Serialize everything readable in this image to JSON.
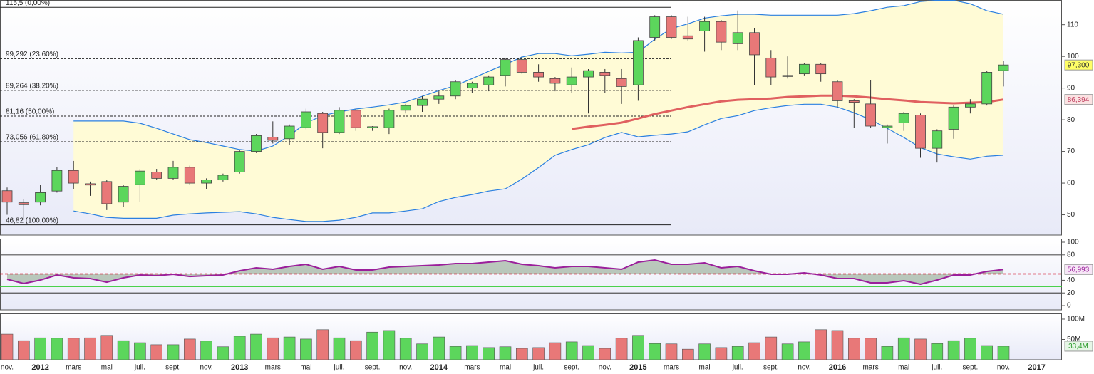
{
  "chart_data": [
    {
      "type": "candlestick",
      "open": [
        57.6,
        53.8,
        54,
        57.5,
        64,
        59.8,
        60.5,
        54,
        59.5,
        63.5,
        61.5,
        65,
        60,
        61,
        63.5,
        70,
        74.5,
        74,
        77.5,
        82,
        76,
        83,
        77.5,
        77.5,
        83,
        84.5,
        86.5,
        87.5,
        90,
        91,
        94,
        99,
        95,
        93,
        91,
        93.5,
        95,
        93,
        91,
        106,
        112.5,
        106.5,
        108,
        111,
        104,
        107.5,
        99.5,
        94,
        94.5,
        97.5,
        92,
        86,
        85,
        77.5,
        79,
        81.5,
        71,
        77,
        84,
        85,
        95.5,
        null,
        null
      ],
      "high": [
        58.6,
        55,
        59.5,
        65,
        67,
        60.5,
        61,
        59.5,
        64.5,
        64.5,
        67,
        65.5,
        61.5,
        63,
        70.5,
        75.5,
        79.5,
        78.5,
        83.5,
        82.5,
        84,
        83.5,
        78,
        83.5,
        85,
        87.5,
        89,
        92.5,
        92,
        94,
        99.5,
        100,
        97.5,
        93.5,
        96.5,
        96,
        96,
        96,
        106,
        113,
        113,
        112.5,
        112.5,
        111.5,
        114.5,
        109,
        102,
        100,
        98,
        98,
        92.5,
        86.5,
        92.5,
        78.5,
        82.5,
        82,
        77,
        84.5,
        86.5,
        95.5,
        98.5,
        null,
        null
      ],
      "low": [
        50,
        49,
        53,
        57,
        58,
        56,
        51.5,
        52.5,
        54,
        61,
        61,
        59.5,
        58,
        60.5,
        63,
        69.5,
        72.5,
        72,
        77,
        71,
        75.5,
        76.5,
        76.5,
        75.5,
        82,
        82.5,
        85,
        86.5,
        88.5,
        89,
        90.5,
        94.5,
        92,
        89,
        88.5,
        82,
        88.5,
        85,
        86,
        105,
        105.5,
        105,
        101.5,
        102,
        102,
        91,
        91,
        93,
        94,
        92,
        84,
        77.5,
        77.5,
        72.5,
        76.5,
        68,
        66.5,
        74,
        82,
        84.5,
        90.5,
        null,
        null
      ],
      "close": [
        54,
        53.2,
        57,
        64,
        60,
        59.4,
        53.5,
        59,
        63.8,
        61.5,
        65,
        60,
        61,
        62.5,
        70,
        75,
        73.5,
        78,
        82.5,
        76,
        83,
        77.5,
        77.8,
        83,
        84.5,
        86.5,
        87.5,
        92,
        91.5,
        93.5,
        99,
        95,
        93.5,
        91.5,
        93.5,
        95.5,
        94,
        90.5,
        105,
        112.5,
        106,
        105.5,
        111,
        104.5,
        107.5,
        100.5,
        93.5,
        94,
        97.5,
        94.5,
        86,
        85.5,
        78,
        78,
        82,
        71,
        76.5,
        84,
        85,
        95,
        97.3,
        null,
        null
      ],
      "up_color": "#5cd65c",
      "down_color": "#e87878",
      "ylim": [
        43.6,
        117.8
      ],
      "yticks": [
        50,
        60,
        70,
        80,
        90,
        100,
        110
      ],
      "bands": {
        "color": "#2a7fe0",
        "fill": "#fffbd6",
        "upper": [
          null,
          null,
          null,
          null,
          79.6,
          79.6,
          79.6,
          79.6,
          78.9,
          77.3,
          75.5,
          73.7,
          72.8,
          71.7,
          70.6,
          70.1,
          71.7,
          75,
          79,
          81.3,
          82.5,
          83.4,
          84,
          84.7,
          85.6,
          87.4,
          89.2,
          90.8,
          93,
          95.3,
          97.5,
          99.8,
          100.9,
          100.9,
          100.2,
          100.7,
          101.3,
          101.1,
          101.3,
          105.4,
          108.8,
          110.3,
          112.1,
          112.8,
          113.3,
          113.3,
          113,
          113,
          113,
          113,
          113,
          113.5,
          114.4,
          115.5,
          116,
          117.3,
          117.7,
          117.7,
          116.6,
          114.4,
          113.3,
          null,
          null
        ],
        "lower": [
          null,
          null,
          null,
          null,
          51.2,
          50.3,
          49.2,
          48.9,
          48.9,
          48.9,
          49.9,
          50.3,
          50.6,
          50.8,
          51,
          50.3,
          49.2,
          48.5,
          47.9,
          47.9,
          48.3,
          49.2,
          50.6,
          50.6,
          51.2,
          51.9,
          54.2,
          55.5,
          56.4,
          57.5,
          58.2,
          61.3,
          64.9,
          68.8,
          70.6,
          72.1,
          74.4,
          76,
          74.6,
          75.1,
          75.5,
          76.2,
          78.4,
          80.4,
          81.3,
          82.9,
          83.8,
          84.5,
          84.9,
          84.9,
          84,
          82.2,
          80,
          77.3,
          74.4,
          71.2,
          69.2,
          68.3,
          67.6,
          68.5,
          68.8,
          null,
          null
        ]
      },
      "moving_average": {
        "color": "#e06060",
        "values": [
          null,
          null,
          null,
          null,
          null,
          null,
          null,
          null,
          null,
          null,
          null,
          null,
          null,
          null,
          null,
          null,
          null,
          null,
          null,
          null,
          null,
          null,
          null,
          null,
          null,
          null,
          null,
          null,
          null,
          null,
          null,
          null,
          null,
          null,
          77.1,
          77.8,
          78.4,
          79.1,
          80.4,
          81.8,
          82.9,
          84,
          84.9,
          85.8,
          86.3,
          86.5,
          86.7,
          87.2,
          87.4,
          87.6,
          87.6,
          87.4,
          87,
          86.5,
          86.1,
          85.6,
          85.4,
          85.2,
          85.4,
          85.6,
          86.394,
          null,
          null
        ]
      },
      "levels": [
        {
          "value": 115.5,
          "label": "115,5 (0,00%)",
          "dashed": false
        },
        {
          "value": 99.292,
          "label": "99,292 (23,60%)",
          "dashed": true
        },
        {
          "value": 89.264,
          "label": "89,264 (38,20%)",
          "dashed": true
        },
        {
          "value": 81.16,
          "label": "81,16 (50,00%)",
          "dashed": true
        },
        {
          "value": 73.056,
          "label": "73,056 (61,80%)",
          "dashed": true
        },
        {
          "value": 46.82,
          "label": "46,82 (100,00%)",
          "dashed": false
        }
      ],
      "markers": [
        {
          "value": 97.3,
          "label": "97,300",
          "color": "#ffff66",
          "text_color": "#333"
        },
        {
          "value": 86.394,
          "label": "86,394",
          "color": "#fbe3e3",
          "text_color": "#c04060"
        }
      ]
    },
    {
      "type": "line",
      "color": "#9b1f9b",
      "values": [
        41.6,
        34.8,
        40.4,
        48.3,
        43.8,
        42.7,
        37,
        43.8,
        48.3,
        47.2,
        49.4,
        46,
        47.2,
        48.3,
        55,
        59.6,
        57.3,
        61.8,
        65.2,
        57.3,
        61.8,
        56.2,
        56.2,
        60.7,
        61.8,
        62.9,
        64,
        66.3,
        66.3,
        68.5,
        70.8,
        65.2,
        62.9,
        59.6,
        61.8,
        61.8,
        59.6,
        57.3,
        68.5,
        71.9,
        65.2,
        65.2,
        67.4,
        59.6,
        61.8,
        55,
        49.4,
        49.4,
        51.7,
        48.3,
        42.7,
        42.7,
        36,
        36,
        39.3,
        33.7,
        40.4,
        48.3,
        48.3,
        53.9,
        56.993,
        null,
        null
      ],
      "ylim": [
        -6.7,
        105.6
      ],
      "yticks": [
        0,
        20,
        40,
        80,
        100
      ],
      "reference_lines": [
        {
          "value": 80,
          "color": "#555555",
          "dashed": false
        },
        {
          "value": 20,
          "color": "#555555",
          "dashed": false
        },
        {
          "value": 30,
          "color": "#33cc33",
          "dashed": false
        },
        {
          "value": 50,
          "color": "#d0021b",
          "dashed": true
        }
      ],
      "markers": [
        {
          "value": 56.993,
          "label": "56,993",
          "color": "#f6e6f6",
          "text_color": "#9b1f9b"
        }
      ]
    },
    {
      "type": "bar",
      "categories": [
        "nov.",
        null,
        "2012",
        null,
        "mars",
        null,
        "mai",
        null,
        "juil.",
        null,
        "sept.",
        null,
        "nov.",
        null,
        "2013",
        null,
        "mars",
        null,
        "mai",
        null,
        "juil.",
        null,
        "sept.",
        null,
        "nov.",
        null,
        "2014",
        null,
        "mars",
        null,
        "mai",
        null,
        "juil.",
        null,
        "sept.",
        null,
        "nov.",
        null,
        "2015",
        null,
        "mars",
        null,
        "mai",
        null,
        "juil.",
        null,
        "sept.",
        null,
        "nov.",
        null,
        "2016",
        null,
        "mars",
        null,
        "mai",
        null,
        "juil.",
        null,
        "sept.",
        null,
        "nov.",
        null,
        "2017"
      ],
      "values": [
        63,
        47,
        54,
        53,
        53,
        54,
        60,
        47,
        42,
        37,
        37,
        51,
        46,
        32,
        58,
        63,
        54,
        56,
        51,
        74,
        54,
        47,
        68,
        72,
        53,
        39,
        56,
        33,
        35,
        30,
        32,
        28,
        30,
        42,
        44,
        35,
        28,
        53,
        60,
        40,
        39,
        26,
        39,
        30,
        33,
        42,
        56,
        39,
        44,
        74,
        72,
        53,
        53,
        33,
        54,
        51,
        40,
        47,
        53,
        35,
        33.4,
        null,
        null
      ],
      "ylim": [
        0,
        114
      ],
      "yticks": [
        {
          "value": 50,
          "label": "50M"
        },
        {
          "value": 100,
          "label": "100M"
        }
      ],
      "markers": [
        {
          "value": 33.4,
          "label": "33,4M",
          "color": "#e6f6e6",
          "text_color": "#2a9a2a"
        }
      ]
    }
  ]
}
